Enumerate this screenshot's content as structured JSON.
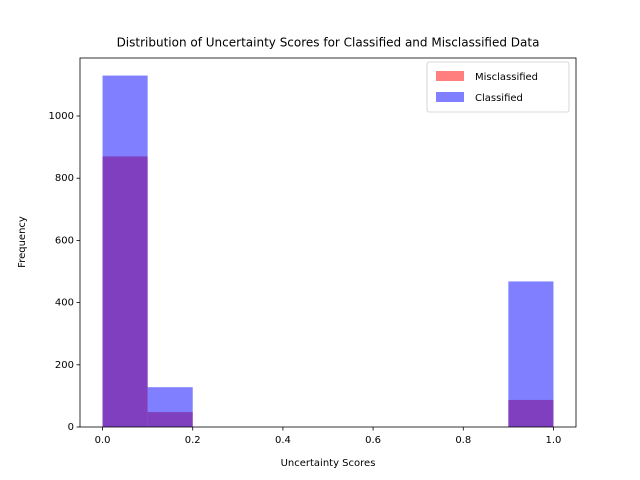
{
  "chart_data": {
    "type": "histogram",
    "title": "Distribution of Uncertainty Scores for Classified and Misclassified Data",
    "xlabel": "Uncertainty Scores",
    "ylabel": "Frequency",
    "bins": [
      0,
      0.1,
      0.2,
      0.3,
      0.4,
      0.5,
      0.6,
      0.7,
      0.8,
      0.9,
      1.0
    ],
    "series": [
      {
        "name": "Misclassified",
        "color": "#ff0000",
        "values": [
          870,
          48,
          0,
          0,
          0,
          0,
          0,
          0,
          0,
          87
        ]
      },
      {
        "name": "Classified",
        "color": "#0000ff",
        "values": [
          1130,
          128,
          0,
          0,
          0,
          0,
          0,
          0,
          0,
          468
        ]
      }
    ],
    "alpha": 0.5,
    "xlim": [
      -0.05,
      1.05
    ],
    "xticks": [
      {
        "value": 0,
        "label": "0.0"
      },
      {
        "value": 0.2,
        "label": "0.2"
      },
      {
        "value": 0.4,
        "label": "0.4"
      },
      {
        "value": 0.6,
        "label": "0.6"
      },
      {
        "value": 0.8,
        "label": "0.8"
      },
      {
        "value": 1.0,
        "label": "1.0"
      }
    ],
    "ylim": [
      0,
      1186.5
    ],
    "yticks": [
      0,
      200,
      400,
      600,
      800,
      1000
    ],
    "legend": "upper right",
    "grid": false
  }
}
